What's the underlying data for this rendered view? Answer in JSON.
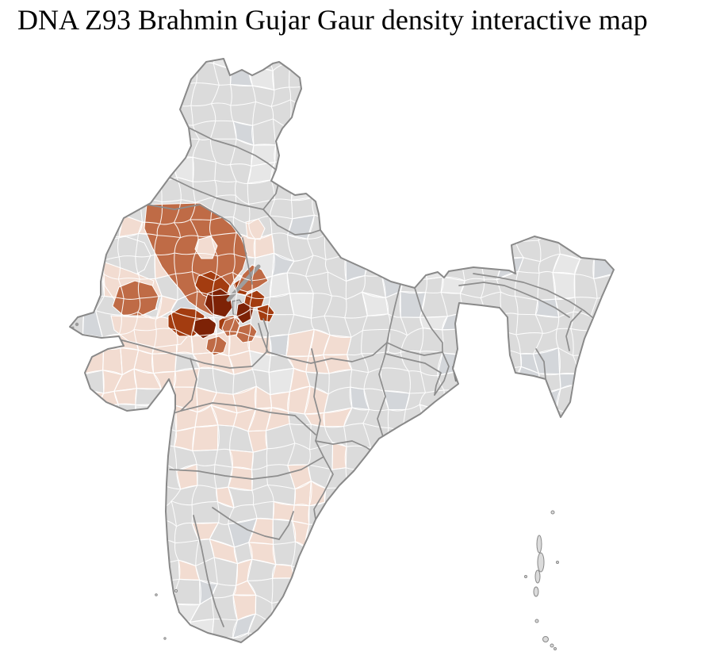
{
  "header": {
    "title": "DNA Z93 Brahmin Gujar Gaur density interactive map"
  },
  "map": {
    "region": "India district-level choropleth",
    "background_color": "#ffffff",
    "base_region_fill": "#dbdbdb",
    "district_border_color": "#ffffff",
    "state_border_color": "#8d8d8d",
    "outline_color": "#898989",
    "density_scale": [
      {
        "class": "no_data",
        "color": "#dbdbdb"
      },
      {
        "class": "low",
        "color": "#f2dcd1"
      },
      {
        "class": "medium",
        "color": "#bf6b46"
      },
      {
        "class": "high",
        "color": "#a33c10"
      },
      {
        "class": "very_high",
        "color": "#7d2206"
      }
    ],
    "high_density_cluster": "northwest India",
    "special_fills": {
      "urban_district": "#c6c6c6",
      "delta_hatch": "#7d7d7d",
      "river_corridor": "#9e9e9e",
      "city_marker": "#9a9a9a",
      "gray_variant_cool": "#d3d6da",
      "gray_variant_light": "#e7e7e7"
    }
  }
}
